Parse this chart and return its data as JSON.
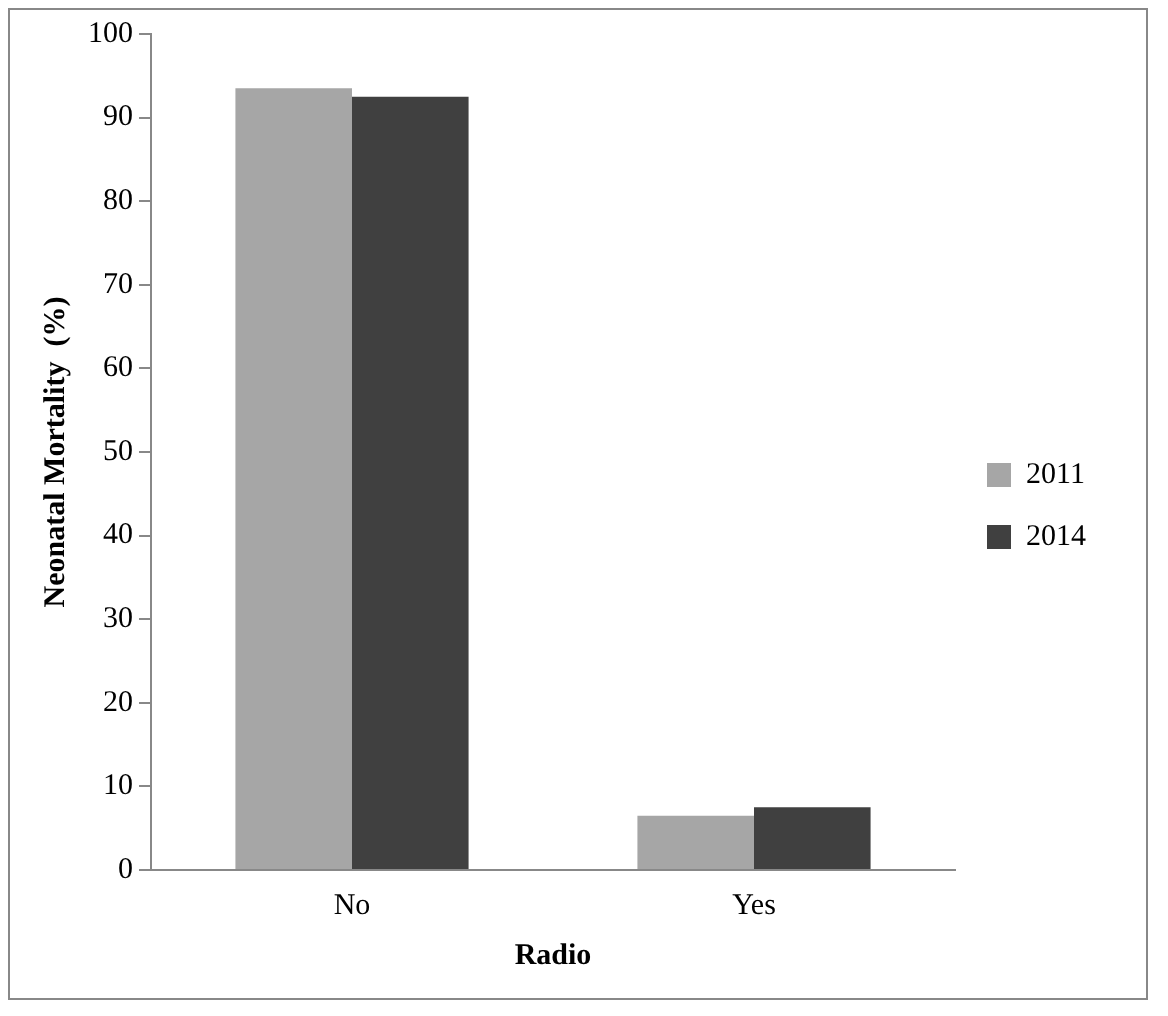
{
  "chart_data": {
    "type": "bar",
    "xlabel": "Radio",
    "ylabel": "Neonatal Mortality  (%)",
    "categories": [
      "No",
      "Yes"
    ],
    "series": [
      {
        "name": "2011",
        "color": "#a6a6a6",
        "values": [
          93.5,
          6.5
        ]
      },
      {
        "name": "2014",
        "color": "#404040",
        "values": [
          92.5,
          7.5
        ]
      }
    ],
    "ylim": [
      0,
      100
    ],
    "yticks": [
      0,
      10,
      20,
      30,
      40,
      50,
      60,
      70,
      80,
      90,
      100
    ],
    "grid": false,
    "legend": "right"
  }
}
